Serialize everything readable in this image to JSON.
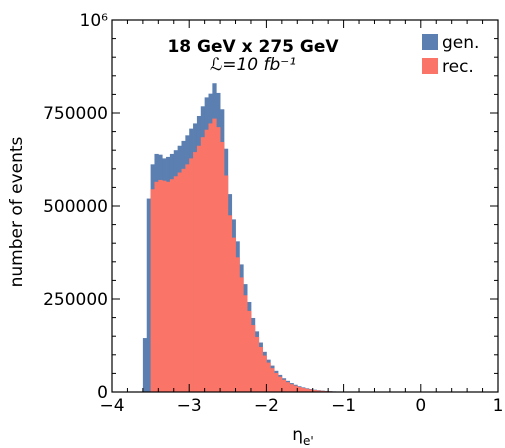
{
  "chart_data": {
    "type": "bar",
    "subtype": "stacked-overlay-histogram",
    "title": "18 GeV x 275 GeV",
    "subtitle": "ℒ=10 fb⁻¹",
    "xlabel": "ηe'",
    "ylabel": "number of events",
    "xlim": [
      -4,
      1
    ],
    "ylim": [
      0,
      1000000
    ],
    "xticks": [
      -4,
      -3,
      -2,
      -1,
      0,
      1
    ],
    "xtick_labels": [
      "−4",
      "−3",
      "−2",
      "−1",
      "0",
      "1"
    ],
    "yticks": [
      0,
      250000,
      500000,
      750000
    ],
    "ytick_labels": [
      "0",
      "250000",
      "500000",
      "750000"
    ],
    "ytop_label": "10⁶",
    "grid": false,
    "legend": "top-right",
    "bin_width": 0.05,
    "bin_start": -3.6,
    "series": [
      {
        "name": "gen.",
        "color": "#5b7fb0",
        "values": [
          145000,
          520000,
          612000,
          640000,
          638000,
          628000,
          632000,
          640000,
          650000,
          662000,
          675000,
          690000,
          708000,
          722000,
          742000,
          768000,
          792000,
          802000,
          830000,
          804000,
          760000,
          654000,
          532000,
          464000,
          405000,
          343000,
          290000,
          242000,
          199000,
          163000,
          133000,
          108000,
          87000,
          71000,
          57000,
          46000,
          37000,
          30000,
          24000,
          19500,
          15500,
          12500,
          10000,
          8000,
          6300,
          4900,
          3800,
          2900,
          2200,
          1600,
          1150,
          800,
          520,
          300,
          150,
          60,
          20,
          5
        ]
      },
      {
        "name": "rec.",
        "color": "#fa7468",
        "values": [
          0,
          0,
          545000,
          565000,
          570000,
          568000,
          565000,
          572000,
          580000,
          590000,
          600000,
          612000,
          628000,
          645000,
          662000,
          685000,
          705000,
          722000,
          735000,
          712000,
          672000,
          582000,
          475000,
          415000,
          362000,
          308000,
          260000,
          218000,
          180000,
          148000,
          121000,
          98000,
          79000,
          64000,
          51000,
          41000,
          33000,
          26500,
          21000,
          17000,
          13500,
          10800,
          8600,
          6900,
          5400,
          4200,
          3200,
          2450,
          1850,
          1350,
          950,
          650,
          420,
          240,
          120,
          45,
          15,
          3
        ]
      }
    ]
  }
}
